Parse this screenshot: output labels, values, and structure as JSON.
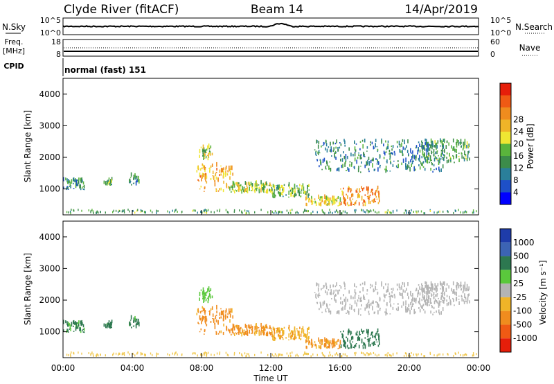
{
  "header": {
    "station": "Clyde River (fitACF)",
    "beam": "Beam 14",
    "date": "14/Apr/2019"
  },
  "noise_panel": {
    "left_label": "N.Sky",
    "right_label": "N.Search",
    "left_ticks": [
      "10^5",
      "10^0"
    ],
    "right_ticks": [
      "10^5",
      "10^0"
    ]
  },
  "freq_panel": {
    "left_label_line1": "Freq.",
    "left_label_line2": "[MHz]",
    "right_label": "Nave",
    "left_ticks": [
      "18",
      "8"
    ],
    "right_ticks": [
      "60",
      "0"
    ]
  },
  "cpid": {
    "label": "CPID",
    "value": "normal (fast) 151"
  },
  "x_axis": {
    "label": "Time UT",
    "ticks": [
      "00:00",
      "04:00",
      "08:00",
      "12:00",
      "16:00",
      "20:00",
      "00:00"
    ],
    "range_hours": [
      0,
      24
    ]
  },
  "y_axis": {
    "label": "Slant Range [km]",
    "ticks": [
      "1000",
      "2000",
      "3000",
      "4000"
    ],
    "range_km": [
      180,
      4500
    ]
  },
  "power_scale": {
    "title": "Power [dB]",
    "labels": [
      "4",
      "8",
      "12",
      "16",
      "20",
      "24",
      "28"
    ],
    "colors": [
      "#0000ff",
      "#1e50c8",
      "#2a7f9a",
      "#3c8c4a",
      "#5ab43c",
      "#f0e632",
      "#f0b428",
      "#f08c1e",
      "#f05a14",
      "#e61e0a"
    ]
  },
  "velocity_scale": {
    "title": "Velocity [m s⁻¹]",
    "labels": [
      "1000",
      "500",
      "100",
      "25",
      "-25",
      "-100",
      "-500",
      "-1000"
    ],
    "colors": [
      "#1e3caa",
      "#3c64b4",
      "#2d7850",
      "#5ac83c",
      "#b4b4b4",
      "#f0b428",
      "#f08c1e",
      "#f05a14",
      "#e61e0a"
    ]
  },
  "chart_data": {
    "type": "heatmap",
    "x_unit": "hours UT",
    "y_unit": "km",
    "regions": [
      {
        "x": [
          0.0,
          1.2
        ],
        "y": [
          950,
          1300
        ],
        "power": 10,
        "velocity": 120
      },
      {
        "x": [
          2.3,
          2.8
        ],
        "y": [
          1100,
          1300
        ],
        "power": 11,
        "velocity": 150
      },
      {
        "x": [
          3.8,
          4.4
        ],
        "y": [
          1100,
          1400
        ],
        "power": 10,
        "velocity": 150
      },
      {
        "x": [
          7.7,
          9.8
        ],
        "y": [
          900,
          1750
        ],
        "power": 20,
        "velocity": -150
      },
      {
        "x": [
          9.6,
          12.0
        ],
        "y": [
          850,
          1150
        ],
        "power": 15,
        "velocity": -120
      },
      {
        "x": [
          12.0,
          14.2
        ],
        "y": [
          700,
          1100
        ],
        "power": 13,
        "velocity": -80
      },
      {
        "x": [
          14.0,
          16.0
        ],
        "y": [
          450,
          700
        ],
        "power": 17,
        "velocity": -120
      },
      {
        "x": [
          16.0,
          18.3
        ],
        "y": [
          450,
          1000
        ],
        "power": 22,
        "velocity": 200
      },
      {
        "x": [
          7.8,
          8.6
        ],
        "y": [
          1900,
          2300
        ],
        "power": 15,
        "velocity": 60
      },
      {
        "x": [
          14.5,
          22.0
        ],
        "y": [
          1500,
          2500
        ],
        "power": 9,
        "velocity": 10
      },
      {
        "x": [
          20.5,
          23.5
        ],
        "y": [
          1800,
          2500
        ],
        "power": 11,
        "velocity": 10
      }
    ]
  }
}
